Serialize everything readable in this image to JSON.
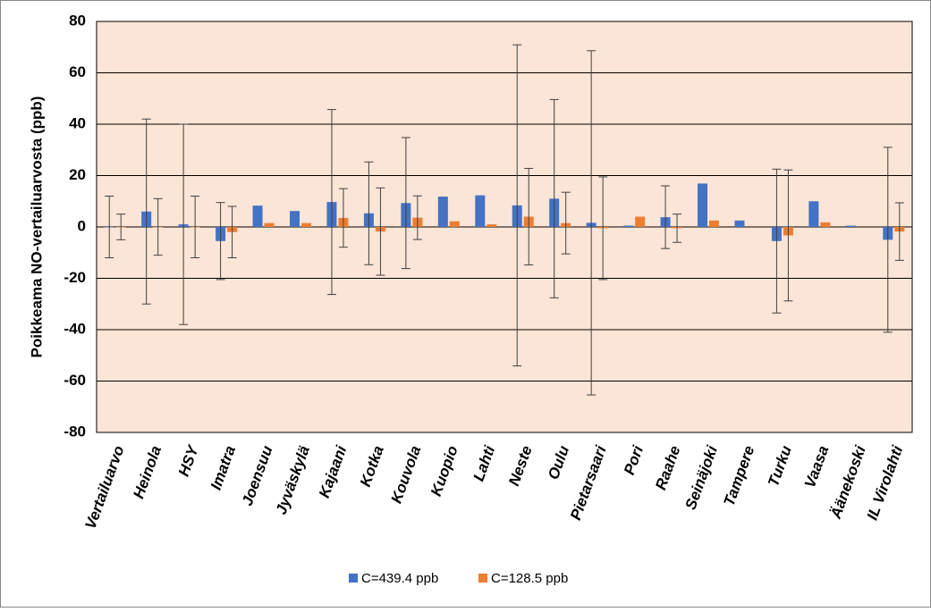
{
  "chart_data": {
    "type": "bar",
    "y_label": "Poikkeama NO-vertailuarvosta (ppb)",
    "categories": [
      "Vertailuarvo",
      "Heinola",
      "HSY",
      "Imatra",
      "Joensuu",
      "Jyväskylä",
      "Kajaani",
      "Kotka",
      "Kouvola",
      "Kuopio",
      "Lahti",
      "Neste",
      "Oulu",
      "Pietarsaari",
      "Pori",
      "Raahe",
      "Seinäjoki",
      "Tampere",
      "Turku",
      "Vaasa",
      "Äänekoski",
      "IL Virolahti"
    ],
    "series": [
      {
        "name": "C=439.4 ppb",
        "color": "#4472c4",
        "values": [
          0,
          6,
          1,
          -5.5,
          8.3,
          6.2,
          9.7,
          5.3,
          9.3,
          11.8,
          12.3,
          8.4,
          11,
          1.6,
          0.5,
          3.8,
          16.9,
          2.5,
          -5.5,
          10,
          0.5,
          -5
        ],
        "errors": [
          12,
          36,
          39,
          15,
          null,
          null,
          36,
          20,
          25.5,
          null,
          null,
          62.5,
          38.6,
          67,
          null,
          12.2,
          null,
          null,
          28,
          null,
          null,
          36
        ]
      },
      {
        "name": "C=128.5 ppb",
        "color": "#ed7d31",
        "values": [
          0,
          0,
          0,
          -2,
          1.5,
          1.5,
          3.5,
          -1.8,
          3.6,
          2.2,
          1,
          4,
          1.5,
          -0.5,
          4,
          -0.5,
          2.5,
          null,
          -3.3,
          1.8,
          null,
          -1.8
        ],
        "errors": [
          5,
          11,
          12,
          10,
          null,
          null,
          11.4,
          17,
          8.5,
          null,
          null,
          18.8,
          12,
          20,
          null,
          5.5,
          null,
          null,
          25.5,
          null,
          null,
          11.2
        ]
      }
    ],
    "ylim": [
      -80,
      80
    ],
    "yticks": [
      -80,
      -60,
      -40,
      -20,
      0,
      20,
      40,
      60,
      80
    ],
    "grid": true,
    "background": "#fbe5d6",
    "legend": "bottom"
  }
}
